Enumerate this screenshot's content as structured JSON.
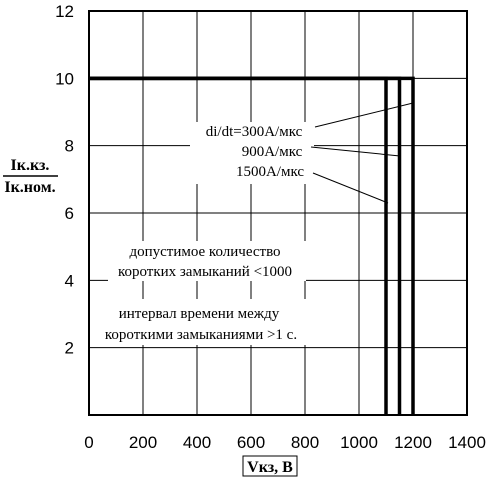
{
  "chart_data": {
    "type": "line",
    "title": "",
    "xlabel": "Vкз, В",
    "ylabel_top": "Iк.кз.",
    "ylabel_bottom": "Iк.ном.",
    "xlim": [
      0,
      1400
    ],
    "ylim": [
      0,
      12
    ],
    "grid": true,
    "xticks": [
      "0",
      "200",
      "400",
      "600",
      "800",
      "1000",
      "1200",
      "1400"
    ],
    "yticks": [
      "2",
      "4",
      "6",
      "8",
      "10",
      "12"
    ],
    "series": [
      {
        "name": "di/dt=300А/мкс",
        "x": [
          0,
          1200,
          1200
        ],
        "y": [
          10,
          10,
          0
        ]
      },
      {
        "name": "900А/мкс",
        "x": [
          0,
          1150,
          1150
        ],
        "y": [
          10,
          10,
          0
        ]
      },
      {
        "name": "1500А/мкс",
        "x": [
          0,
          1100,
          1100
        ],
        "y": [
          10,
          10,
          0
        ]
      }
    ],
    "annotations": [
      "допустимое количество",
      "коротких замыканий <1000",
      "интервал времени между",
      "короткими замыканиями >1 с."
    ]
  }
}
